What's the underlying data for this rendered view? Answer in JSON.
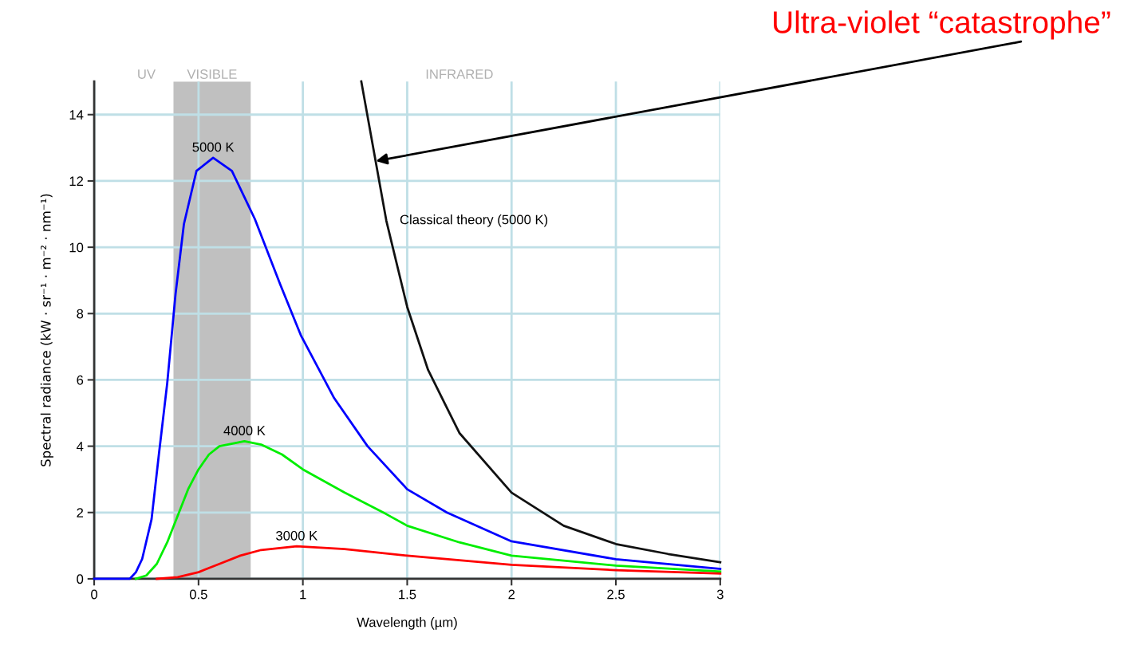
{
  "chart_data": {
    "type": "line",
    "xlabel": "Wavelength (µm)",
    "ylabel": "Spectral radiance (kW · sr⁻¹ · m⁻² · nm⁻¹)",
    "xlim": [
      0,
      3
    ],
    "xticks": [
      0,
      0.5,
      1,
      1.5,
      2,
      2.5,
      3
    ],
    "ylim": [
      0,
      15
    ],
    "yticks": [
      0,
      2,
      4,
      6,
      8,
      10,
      12,
      14
    ],
    "grid": true,
    "legend": false,
    "marker": "none",
    "line_style": "solid",
    "bands": [
      {
        "axis": "x",
        "from": 0.38,
        "to": 0.75,
        "label": "VISIBLE",
        "color": "#c0c0c0"
      }
    ],
    "annotations": [
      "UV",
      "INFRARED",
      {
        "text": "Ultra-violet “catastrophe”",
        "x": 1.35,
        "y": 12.6
      }
    ],
    "series": [
      {
        "name": "5000 K",
        "color": "#0000ff",
        "x": [
          0,
          0.17,
          0.2,
          0.23,
          0.275,
          0.31,
          0.35,
          0.39,
          0.43,
          0.49,
          0.57,
          0.66,
          0.77,
          0.89,
          0.99,
          1.15,
          1.31,
          1.5,
          1.69,
          2.0,
          2.5,
          3.0
        ],
        "values": [
          0,
          0,
          0.2,
          0.6,
          1.8,
          3.75,
          5.9,
          8.6,
          10.7,
          12.3,
          12.7,
          12.3,
          10.85,
          8.9,
          7.35,
          5.45,
          4.0,
          2.7,
          2.0,
          1.13,
          0.59,
          0.3
        ]
      },
      {
        "name": "4000 K",
        "color": "#00ee00",
        "x": [
          0.2,
          0.25,
          0.3,
          0.35,
          0.4,
          0.45,
          0.5,
          0.55,
          0.6,
          0.72,
          0.8,
          0.9,
          1.0,
          1.2,
          1.4,
          1.5,
          1.75,
          2.0,
          2.5,
          3.0
        ],
        "values": [
          0,
          0.1,
          0.45,
          1.1,
          1.9,
          2.7,
          3.3,
          3.75,
          4.0,
          4.15,
          4.05,
          3.75,
          3.3,
          2.6,
          1.95,
          1.6,
          1.1,
          0.7,
          0.4,
          0.22
        ]
      },
      {
        "name": "3000 K",
        "color": "#ff0000",
        "x": [
          0.3,
          0.4,
          0.5,
          0.6,
          0.7,
          0.8,
          0.97,
          1.2,
          1.5,
          2.0,
          2.5,
          3.0
        ],
        "values": [
          0,
          0.05,
          0.2,
          0.45,
          0.7,
          0.87,
          0.98,
          0.9,
          0.7,
          0.42,
          0.26,
          0.16
        ]
      },
      {
        "name": "Classical theory (5000 K)",
        "color": "#111111",
        "x": [
          1.28,
          1.4,
          1.5,
          1.6,
          1.75,
          2.0,
          2.25,
          2.5,
          2.75,
          3.0
        ],
        "values": [
          15,
          10.8,
          8.2,
          6.3,
          4.4,
          2.6,
          1.6,
          1.05,
          0.75,
          0.5
        ]
      }
    ]
  }
}
